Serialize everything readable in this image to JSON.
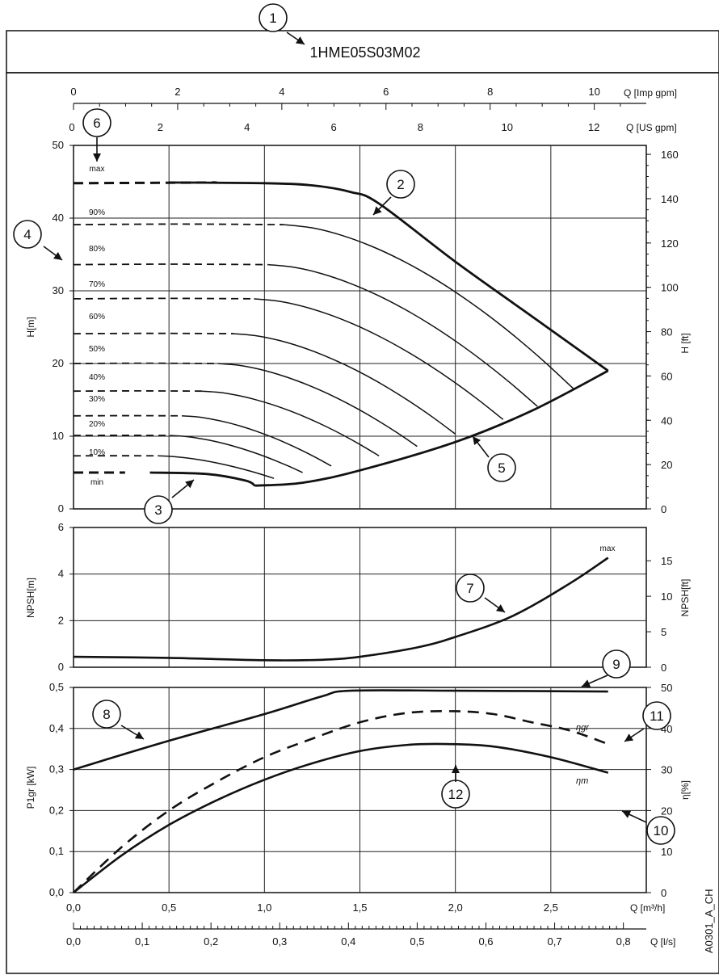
{
  "title": "1HME05S03M02",
  "figure_code": "A0301_A_CH",
  "chart_data": {
    "type": "line",
    "x_axes": {
      "q_m3h": {
        "label": "Q [m³/h]",
        "ticks": [
          "0,0",
          "0,5",
          "1,0",
          "1,5",
          "2,0",
          "2,5"
        ],
        "range": [
          0,
          3.0
        ]
      },
      "q_ls": {
        "label": "Q [l/s]",
        "ticks": [
          "0,0",
          "0,1",
          "0,2",
          "0,3",
          "0,4",
          "0,5",
          "0,6",
          "0,7",
          "0,8"
        ]
      },
      "q_imp_gpm": {
        "label": "Q [Imp gpm]",
        "ticks": [
          "0",
          "2",
          "4",
          "6",
          "8",
          "10"
        ]
      },
      "q_us_gpm": {
        "label": "Q [US gpm]",
        "ticks": [
          "0",
          "2",
          "4",
          "6",
          "8",
          "10",
          "12"
        ]
      }
    },
    "head_panel": {
      "ylabel_left": "H[m]",
      "ylabel_right": "H [ft]",
      "yticks_left": [
        "0",
        "10",
        "20",
        "30",
        "40",
        "50"
      ],
      "ylim": [
        0,
        50
      ],
      "yticks_right": [
        "0",
        "20",
        "40",
        "60",
        "80",
        "100",
        "120",
        "140",
        "160"
      ],
      "speed_curves": [
        {
          "name": "max",
          "shutoff_head": 44.8,
          "end_q": 2.8,
          "end_h": 19.0,
          "points": [
            [
              0,
              44.8
            ],
            [
              0.5,
              44.9
            ],
            [
              1.0,
              44.8
            ],
            [
              1.25,
              44.5
            ],
            [
              1.45,
              43.6
            ],
            [
              1.6,
              42.0
            ],
            [
              2.0,
              34.0
            ],
            [
              2.4,
              26.5
            ],
            [
              2.8,
              19.0
            ]
          ]
        },
        {
          "name": "90%",
          "shutoff_head": 39.1,
          "end_q": 2.62,
          "end_h": 16.5
        },
        {
          "name": "80%",
          "shutoff_head": 33.6,
          "end_q": 2.43,
          "end_h": 14.1
        },
        {
          "name": "70%",
          "shutoff_head": 28.9,
          "end_q": 2.25,
          "end_h": 12.3
        },
        {
          "name": "60%",
          "shutoff_head": 24.1,
          "end_q": 2.0,
          "end_h": 10.3
        },
        {
          "name": "50%",
          "shutoff_head": 20.0,
          "end_q": 1.8,
          "end_h": 8.6
        },
        {
          "name": "40%",
          "shutoff_head": 16.2,
          "end_q": 1.6,
          "end_h": 7.3
        },
        {
          "name": "30%",
          "shutoff_head": 12.8,
          "end_q": 1.35,
          "end_h": 5.9
        },
        {
          "name": "20%",
          "shutoff_head": 10.1,
          "end_q": 1.2,
          "end_h": 5.0
        },
        {
          "name": "10%",
          "shutoff_head": 7.3,
          "end_q": 1.05,
          "end_h": 4.2
        },
        {
          "name": "min",
          "shutoff_head": 5.0,
          "end_q": 0.95,
          "end_h": 3.2,
          "points": [
            [
              0.4,
              5.0
            ],
            [
              0.7,
              4.8
            ],
            [
              0.9,
              3.9
            ],
            [
              0.95,
              3.2
            ]
          ]
        }
      ],
      "limit_curve": [
        [
          0.95,
          3.2
        ],
        [
          1.2,
          3.6
        ],
        [
          1.5,
          5.3
        ],
        [
          2.0,
          9.2
        ],
        [
          2.4,
          13.5
        ],
        [
          2.8,
          19.0
        ]
      ]
    },
    "npsh_panel": {
      "ylabel_left": "NPSH[m]",
      "ylabel_right": "NPSH[ft]",
      "yticks_left": [
        "0",
        "2",
        "4",
        "6"
      ],
      "ylim": [
        0,
        6
      ],
      "yticks_right": [
        "0",
        "5",
        "10",
        "15"
      ],
      "curve_label": "max",
      "points": [
        [
          0,
          0.45
        ],
        [
          0.5,
          0.4
        ],
        [
          1.0,
          0.3
        ],
        [
          1.3,
          0.32
        ],
        [
          1.5,
          0.45
        ],
        [
          1.8,
          0.85
        ],
        [
          2.0,
          1.3
        ],
        [
          2.3,
          2.2
        ],
        [
          2.6,
          3.6
        ],
        [
          2.8,
          4.7
        ]
      ]
    },
    "power_panel": {
      "ylabel_left": "P1gr [kW]",
      "ylabel_right": "η[%]",
      "yticks_left": [
        "0,0",
        "0,1",
        "0,2",
        "0,3",
        "0,4",
        "0,5"
      ],
      "ylim": [
        0,
        0.5
      ],
      "yticks_right": [
        "0",
        "10",
        "20",
        "30",
        "40",
        "50"
      ],
      "series": [
        {
          "name": "P1gr",
          "style": "solid",
          "points": [
            [
              0,
              0.3
            ],
            [
              0.5,
              0.37
            ],
            [
              1.0,
              0.435
            ],
            [
              1.3,
              0.478
            ],
            [
              1.45,
              0.492
            ],
            [
              2.0,
              0.492
            ],
            [
              2.8,
              0.49
            ]
          ]
        },
        {
          "name": "ηgr",
          "axis": "right",
          "style": "dashed",
          "points": [
            [
              0,
              0
            ],
            [
              0.25,
              11
            ],
            [
              0.5,
              20
            ],
            [
              0.75,
              27
            ],
            [
              1.0,
              33
            ],
            [
              1.25,
              37.5
            ],
            [
              1.5,
              41.5
            ],
            [
              1.75,
              43.8
            ],
            [
              2.0,
              44.2
            ],
            [
              2.2,
              43.5
            ],
            [
              2.4,
              41.5
            ],
            [
              2.6,
              39.5
            ],
            [
              2.8,
              36.2
            ]
          ]
        },
        {
          "name": "ηm",
          "axis": "right",
          "style": "solid",
          "points": [
            [
              0,
              0
            ],
            [
              0.25,
              9
            ],
            [
              0.5,
              16.5
            ],
            [
              0.75,
              22.5
            ],
            [
              1.0,
              27.5
            ],
            [
              1.25,
              31.5
            ],
            [
              1.5,
              34.5
            ],
            [
              1.75,
              36
            ],
            [
              1.95,
              36.2
            ],
            [
              2.2,
              35.6
            ],
            [
              2.5,
              33
            ],
            [
              2.8,
              29.2
            ]
          ]
        }
      ]
    },
    "annotations": {
      "speed_labels": [
        "max",
        "90%",
        "80%",
        "70%",
        "60%",
        "50%",
        "40%",
        "30%",
        "20%",
        "10%",
        "min"
      ],
      "eta_labels": [
        "ηgr",
        "ηm"
      ],
      "callouts": [
        "1",
        "2",
        "3",
        "4",
        "5",
        "6",
        "7",
        "8",
        "9",
        "10",
        "11",
        "12"
      ]
    }
  }
}
